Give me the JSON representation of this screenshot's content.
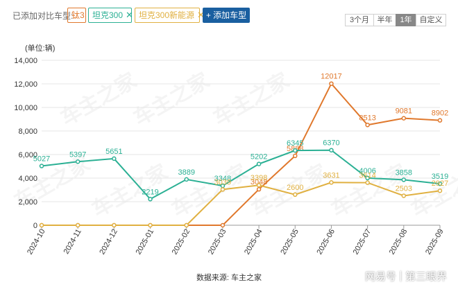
{
  "toolbar": {
    "label": "已添加对比车型:",
    "tags": [
      {
        "text": "钛3",
        "color": "#e0782c",
        "closable": false
      },
      {
        "text": "坦克300",
        "color": "#2bb094",
        "closable": true
      },
      {
        "text": "坦克300新能源",
        "color": "#e0b040",
        "closable": true
      }
    ],
    "close_glyph": "✕",
    "add_label": "+ 添加车型",
    "ranges": [
      {
        "label": "3个月",
        "active": false
      },
      {
        "label": "半年",
        "active": false
      },
      {
        "label": "1年",
        "active": true
      },
      {
        "label": "自定义",
        "active": false
      }
    ]
  },
  "chart_data": {
    "type": "line",
    "unit_label": "(单位:辆)",
    "categories": [
      "2024-10",
      "2024-11",
      "2024-12",
      "2025-01",
      "2025-02",
      "2025-03",
      "2025-04",
      "2025-05",
      "2025-06",
      "2025-07",
      "2025-08",
      "2025-09"
    ],
    "ylim": [
      0,
      14000
    ],
    "yticks": [
      "0",
      "2,000",
      "4,000",
      "6,000",
      "8,000",
      "10,000",
      "12,000",
      "14,000"
    ],
    "grid": true,
    "series": [
      {
        "name": "钛3",
        "color": "#e0782c",
        "values": [
          0,
          0,
          0,
          0,
          0,
          0,
          3048,
          5888,
          12017,
          8513,
          9081,
          8902
        ],
        "labels": [
          "",
          "",
          "",
          "",
          "",
          "",
          "3048",
          "5888",
          "12017",
          "8513",
          "9081",
          "8902"
        ]
      },
      {
        "name": "坦克300",
        "color": "#2bb094",
        "values": [
          5027,
          5397,
          5651,
          2219,
          3889,
          3348,
          5202,
          6345,
          6370,
          4006,
          3858,
          3519
        ],
        "labels": [
          "5027",
          "5397",
          "5651",
          "2219",
          "3889",
          "3348",
          "5202",
          "6345",
          "6370",
          "4006",
          "3858",
          "3519"
        ]
      },
      {
        "name": "坦克300新能源",
        "color": "#e0b040",
        "values": [
          0,
          0,
          0,
          0,
          0,
          3039,
          3398,
          2600,
          3631,
          3614,
          2503,
          2927
        ],
        "labels": [
          "",
          "",
          "",
          "",
          "",
          "3039",
          "3398",
          "2600",
          "3631",
          "3614",
          "2503",
          "2927"
        ]
      }
    ]
  },
  "watermark_text": "车主之家",
  "source": "数据来源: 车主之家",
  "credit": {
    "platform": "网易号",
    "author": "第三眼界"
  }
}
